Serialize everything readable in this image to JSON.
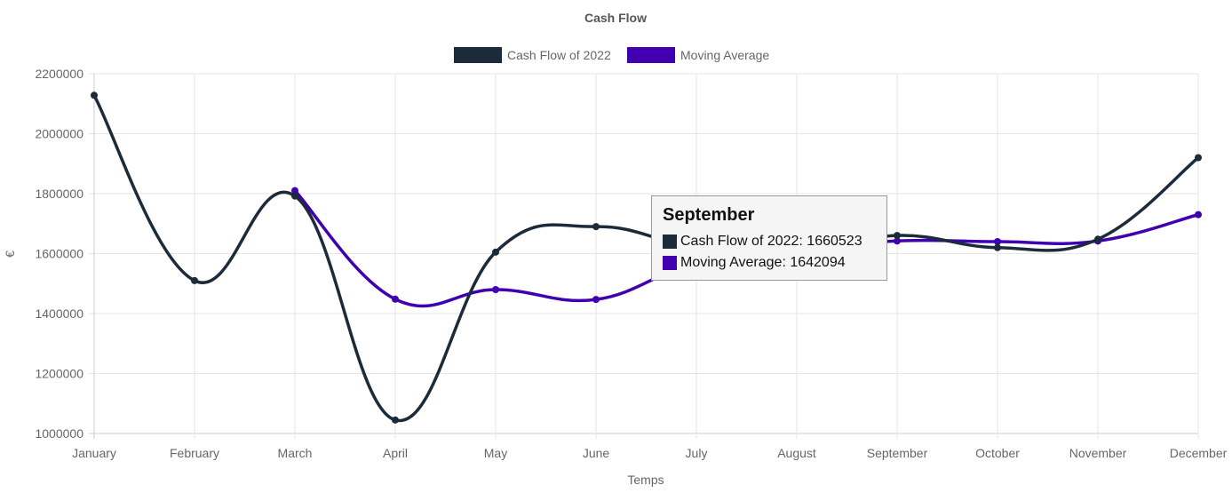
{
  "chart_data": {
    "type": "line",
    "title": "Cash Flow",
    "xlabel": "Temps",
    "ylabel": "€",
    "categories": [
      "January",
      "February",
      "March",
      "April",
      "May",
      "June",
      "July",
      "August",
      "September",
      "October",
      "November",
      "December"
    ],
    "ylim": [
      1000000,
      2200000
    ],
    "yticks": [
      1000000,
      1200000,
      1400000,
      1600000,
      1800000,
      2000000,
      2200000
    ],
    "grid": true,
    "legend_position": "top",
    "series": [
      {
        "name": "Cash Flow of 2022",
        "color": "#1c2b3a",
        "values": [
          2128000,
          1510000,
          1792000,
          1045000,
          1605000,
          1690000,
          1620000,
          1600000,
          1660523,
          1620000,
          1648000,
          1920000
        ]
      },
      {
        "name": "Moving Average",
        "color": "#4000b0",
        "values": [
          null,
          null,
          1810000,
          1448000,
          1480000,
          1447000,
          1570000,
          1610000,
          1642094,
          1640000,
          1642000,
          1730000
        ]
      }
    ],
    "tooltip": {
      "title": "September",
      "lines": [
        {
          "label": "Cash Flow of 2022: 1660523",
          "color": "#1c2b3a"
        },
        {
          "label": "Moving Average: 1642094",
          "color": "#4000b0"
        }
      ]
    }
  }
}
